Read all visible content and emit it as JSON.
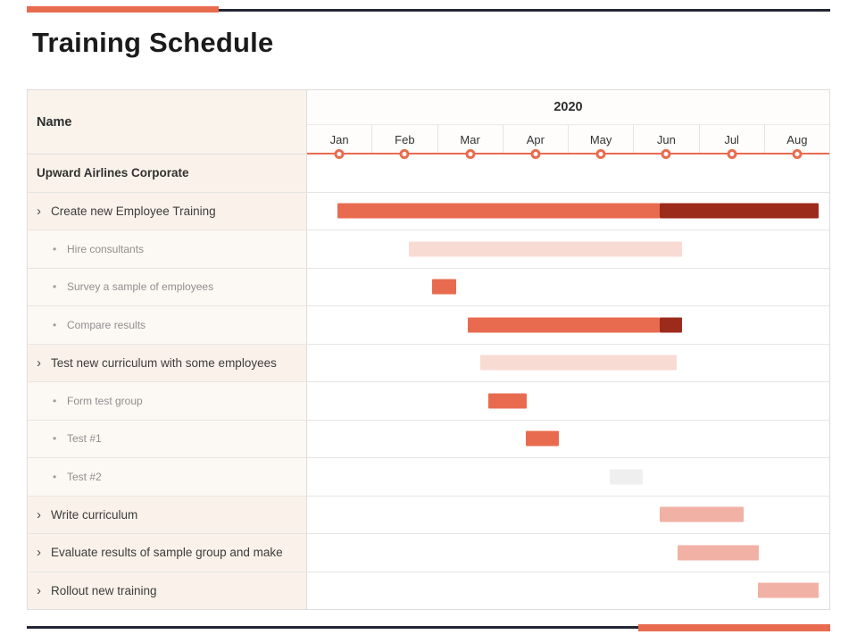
{
  "title": "Training Schedule",
  "colors": {
    "salmon": "#E96B4F",
    "dark_red": "#9C2B1B",
    "light_pink": "#F8DCD4",
    "mid_pink": "#F2B1A5",
    "gray_bar": "#EFEFEF",
    "navy": "#232733"
  },
  "table": {
    "name_header": "Name",
    "year_header": "2020"
  },
  "bullets": {
    "group": "",
    "task": "›",
    "subtask": "•"
  },
  "chart_data": {
    "type": "gantt",
    "title": "Training Schedule",
    "x_axis": {
      "year": "2020",
      "months": [
        "Jan",
        "Feb",
        "Mar",
        "Apr",
        "May",
        "Jun",
        "Jul",
        "Aug"
      ],
      "units": "months",
      "domain": [
        0,
        8
      ]
    },
    "rows": [
      {
        "label": "Upward Airlines Corporate",
        "style": "group",
        "bars": []
      },
      {
        "label": "Create new Employee Training",
        "style": "task",
        "bars": [
          {
            "start": 0.46,
            "end": 5.4,
            "color": "salmon"
          },
          {
            "start": 5.4,
            "end": 7.84,
            "color": "dark_red"
          }
        ]
      },
      {
        "label": "Hire consultants",
        "style": "subtask",
        "bars": [
          {
            "start": 1.56,
            "end": 5.74,
            "color": "light_pink"
          }
        ]
      },
      {
        "label": "Survey a sample of employees",
        "style": "subtask",
        "bars": [
          {
            "start": 1.92,
            "end": 2.29,
            "color": "salmon"
          }
        ]
      },
      {
        "label": "Compare results",
        "style": "subtask",
        "bars": [
          {
            "start": 2.46,
            "end": 5.4,
            "color": "salmon"
          },
          {
            "start": 5.4,
            "end": 5.74,
            "color": "dark_red"
          }
        ]
      },
      {
        "label": "Test new curriculum with some employees",
        "style": "task",
        "bars": [
          {
            "start": 2.65,
            "end": 5.66,
            "color": "light_pink"
          }
        ]
      },
      {
        "label": "Form test group",
        "style": "subtask",
        "bars": [
          {
            "start": 2.78,
            "end": 3.37,
            "color": "salmon"
          }
        ]
      },
      {
        "label": "Test #1",
        "style": "subtask",
        "bars": [
          {
            "start": 3.35,
            "end": 3.85,
            "color": "salmon"
          }
        ]
      },
      {
        "label": "Test #2",
        "style": "subtask",
        "bars": [
          {
            "start": 4.63,
            "end": 5.14,
            "color": "gray_bar"
          }
        ]
      },
      {
        "label": "Write curriculum",
        "style": "task",
        "bars": [
          {
            "start": 5.4,
            "end": 6.69,
            "color": "mid_pink"
          }
        ]
      },
      {
        "label": "Evaluate results of sample group and make",
        "style": "task",
        "bars": [
          {
            "start": 5.67,
            "end": 6.92,
            "color": "mid_pink"
          }
        ]
      },
      {
        "label": "Rollout new training",
        "style": "task",
        "bars": [
          {
            "start": 6.9,
            "end": 7.84,
            "color": "mid_pink"
          }
        ]
      }
    ]
  }
}
